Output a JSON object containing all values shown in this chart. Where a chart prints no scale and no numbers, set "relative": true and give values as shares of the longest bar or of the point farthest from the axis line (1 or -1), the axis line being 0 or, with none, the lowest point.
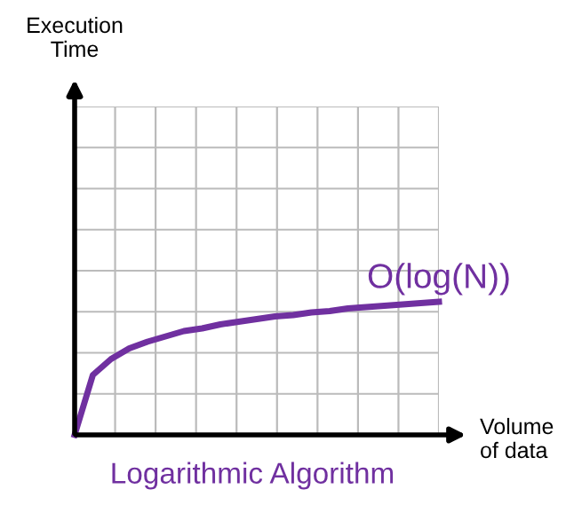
{
  "chart_data": {
    "type": "line",
    "relative": true,
    "title": "Logarithmic Algorithm",
    "xlabel": "Volume\nof data",
    "annotations": [
      "Execution\nTime"
    ],
    "grid": true,
    "marker": "none",
    "line_style": "solid",
    "categories": [
      null,
      null,
      null,
      null,
      null,
      null,
      null,
      null,
      null,
      null,
      null,
      null,
      null,
      null,
      null,
      null,
      null,
      null,
      null,
      null,
      null
    ],
    "series": [
      {
        "name": "O(log(N))",
        "color": "#7030a0",
        "values": [
          0,
          0.45,
          0.57,
          0.65,
          0.7,
          0.74,
          0.78,
          0.8,
          0.83,
          0.85,
          0.87,
          0.89,
          0.9,
          0.92,
          0.93,
          0.95,
          0.96,
          0.97,
          0.98,
          0.99,
          1.0
        ]
      }
    ]
  }
}
